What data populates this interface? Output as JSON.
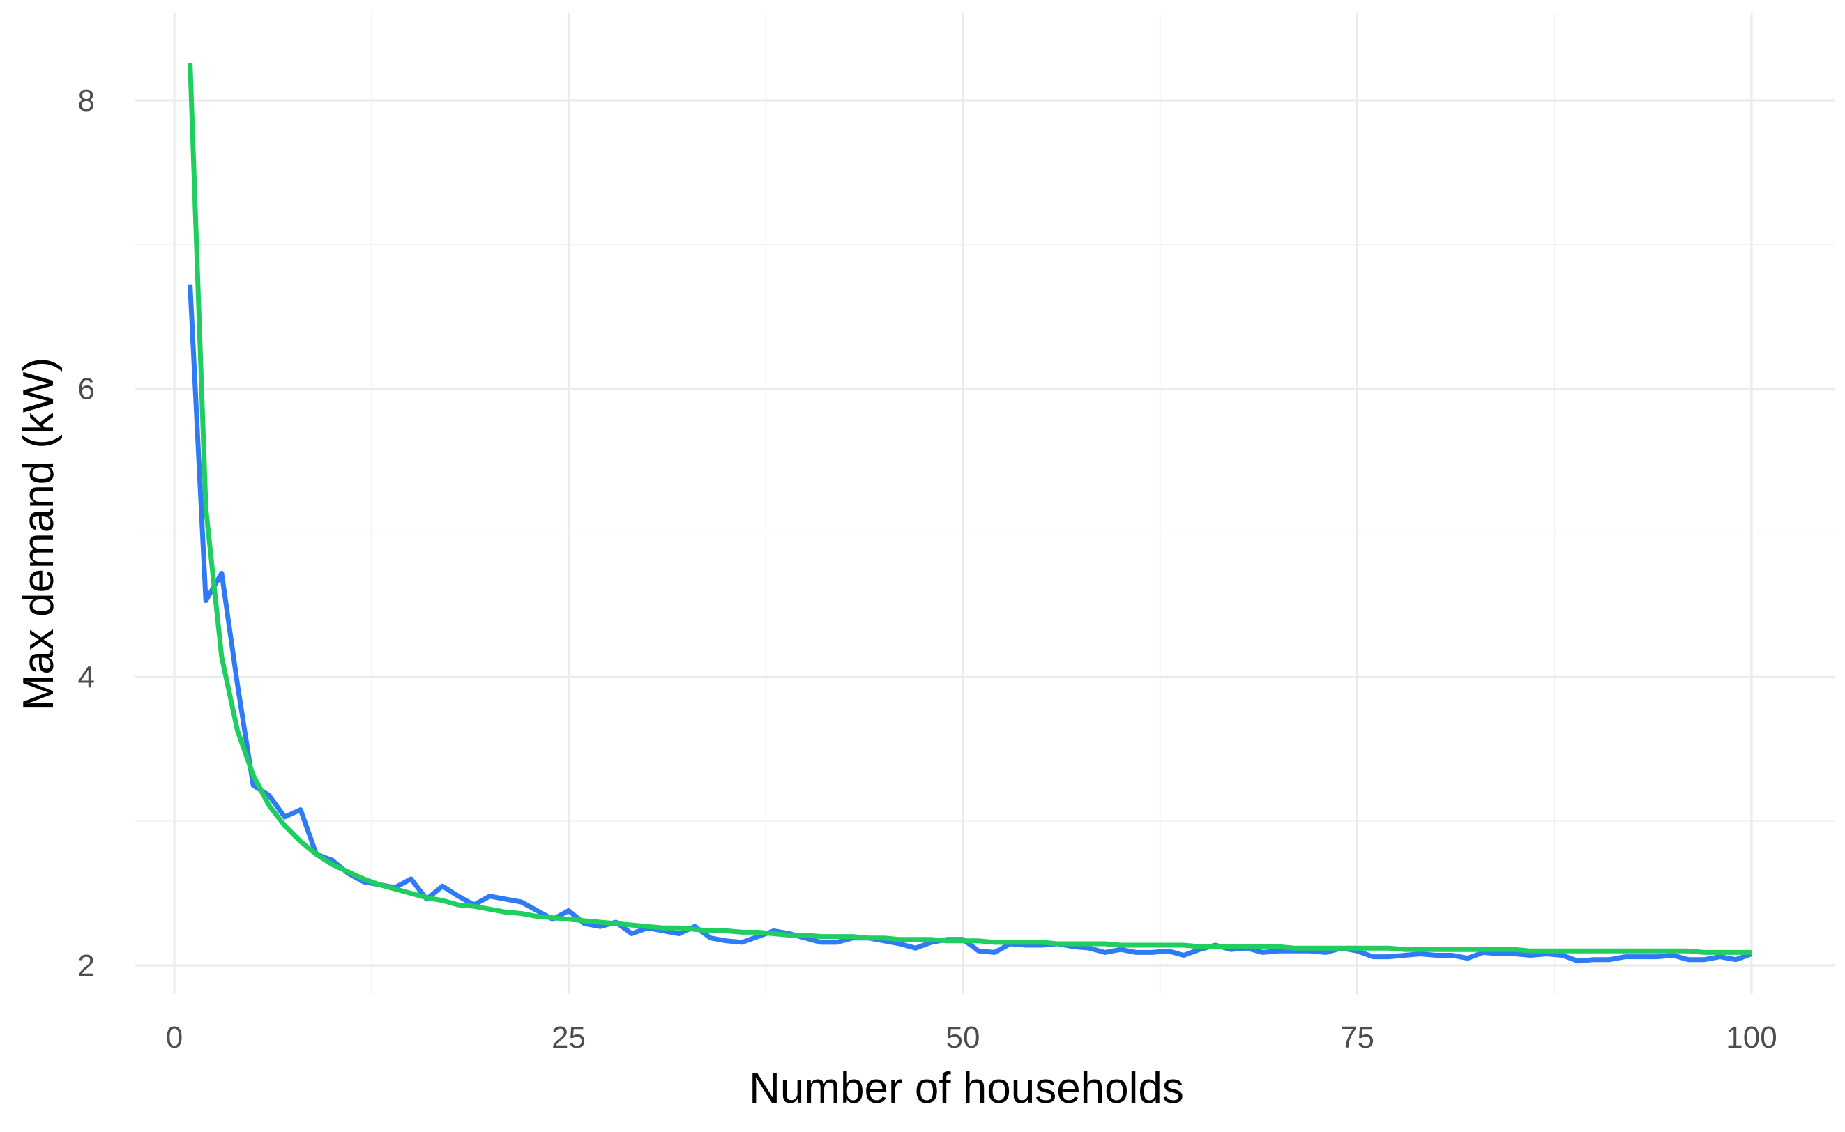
{
  "chart_data": {
    "type": "line",
    "title": "",
    "xlabel": "Number of households",
    "ylabel": "Max demand (kW)",
    "xlim": [
      0,
      100
    ],
    "ylim": [
      2,
      8
    ],
    "x_ticks": [
      0,
      25,
      50,
      75,
      100
    ],
    "x_tick_labels": [
      "0",
      "25",
      "50",
      "75",
      "100"
    ],
    "y_ticks": [
      2,
      4,
      6,
      8
    ],
    "y_tick_labels": [
      "2",
      "4",
      "6",
      "8"
    ],
    "grid": true,
    "legend": "none",
    "series": [
      {
        "color": "#2F7BF5",
        "x": [
          1,
          2,
          3,
          4,
          5,
          6,
          7,
          8,
          9,
          10,
          11,
          12,
          13,
          14,
          15,
          16,
          17,
          18,
          19,
          20,
          21,
          22,
          23,
          24,
          25,
          26,
          27,
          28,
          29,
          30,
          31,
          32,
          33,
          34,
          35,
          36,
          37,
          38,
          39,
          40,
          41,
          42,
          43,
          44,
          45,
          46,
          47,
          48,
          49,
          50,
          51,
          52,
          53,
          54,
          55,
          56,
          57,
          58,
          59,
          60,
          61,
          62,
          63,
          64,
          65,
          66,
          67,
          68,
          69,
          70,
          71,
          72,
          73,
          74,
          75,
          76,
          77,
          78,
          79,
          80,
          81,
          82,
          83,
          84,
          85,
          86,
          87,
          88,
          89,
          90,
          91,
          92,
          93,
          94,
          95,
          96,
          97,
          98,
          99,
          100
        ],
        "values": [
          6.72,
          4.53,
          4.72,
          3.95,
          3.25,
          3.18,
          3.03,
          3.08,
          2.77,
          2.73,
          2.64,
          2.58,
          2.56,
          2.54,
          2.6,
          2.46,
          2.55,
          2.48,
          2.42,
          2.48,
          2.46,
          2.44,
          2.38,
          2.32,
          2.38,
          2.29,
          2.27,
          2.3,
          2.22,
          2.26,
          2.24,
          2.22,
          2.27,
          2.19,
          2.17,
          2.16,
          2.2,
          2.24,
          2.22,
          2.19,
          2.16,
          2.16,
          2.19,
          2.19,
          2.17,
          2.15,
          2.12,
          2.16,
          2.18,
          2.18,
          2.1,
          2.09,
          2.15,
          2.14,
          2.14,
          2.15,
          2.13,
          2.12,
          2.09,
          2.11,
          2.09,
          2.09,
          2.1,
          2.07,
          2.11,
          2.14,
          2.11,
          2.12,
          2.09,
          2.1,
          2.1,
          2.1,
          2.09,
          2.12,
          2.1,
          2.06,
          2.06,
          2.07,
          2.08,
          2.07,
          2.07,
          2.05,
          2.09,
          2.08,
          2.08,
          2.07,
          2.08,
          2.07,
          2.03,
          2.04,
          2.04,
          2.06,
          2.06,
          2.06,
          2.07,
          2.04,
          2.04,
          2.06,
          2.04,
          2.08
        ]
      },
      {
        "color": "#20CE60",
        "x": [
          1,
          2,
          3,
          4,
          5,
          6,
          7,
          8,
          9,
          10,
          11,
          12,
          13,
          14,
          15,
          16,
          17,
          18,
          19,
          20,
          21,
          22,
          23,
          24,
          25,
          26,
          27,
          28,
          29,
          30,
          31,
          32,
          33,
          34,
          35,
          36,
          37,
          38,
          39,
          40,
          41,
          42,
          43,
          44,
          45,
          46,
          47,
          48,
          49,
          50,
          51,
          52,
          53,
          54,
          55,
          56,
          57,
          58,
          59,
          60,
          61,
          62,
          63,
          64,
          65,
          66,
          67,
          68,
          69,
          70,
          71,
          72,
          73,
          74,
          75,
          76,
          77,
          78,
          79,
          80,
          81,
          82,
          83,
          84,
          85,
          86,
          87,
          88,
          89,
          90,
          91,
          92,
          93,
          94,
          95,
          96,
          97,
          98,
          99,
          100
        ],
        "values": [
          8.26,
          5.17,
          4.14,
          3.63,
          3.32,
          3.11,
          2.97,
          2.86,
          2.77,
          2.7,
          2.65,
          2.6,
          2.56,
          2.53,
          2.5,
          2.47,
          2.45,
          2.42,
          2.41,
          2.39,
          2.37,
          2.36,
          2.34,
          2.33,
          2.32,
          2.31,
          2.3,
          2.29,
          2.28,
          2.27,
          2.26,
          2.26,
          2.25,
          2.24,
          2.24,
          2.23,
          2.23,
          2.22,
          2.21,
          2.21,
          2.2,
          2.2,
          2.2,
          2.19,
          2.19,
          2.18,
          2.18,
          2.18,
          2.17,
          2.17,
          2.17,
          2.16,
          2.16,
          2.16,
          2.16,
          2.15,
          2.15,
          2.15,
          2.15,
          2.14,
          2.14,
          2.14,
          2.14,
          2.14,
          2.13,
          2.13,
          2.13,
          2.13,
          2.13,
          2.13,
          2.12,
          2.12,
          2.12,
          2.12,
          2.12,
          2.12,
          2.12,
          2.11,
          2.11,
          2.11,
          2.11,
          2.11,
          2.11,
          2.11,
          2.11,
          2.1,
          2.1,
          2.1,
          2.1,
          2.1,
          2.1,
          2.1,
          2.1,
          2.1,
          2.1,
          2.1,
          2.09,
          2.09,
          2.09,
          2.09
        ]
      }
    ]
  }
}
